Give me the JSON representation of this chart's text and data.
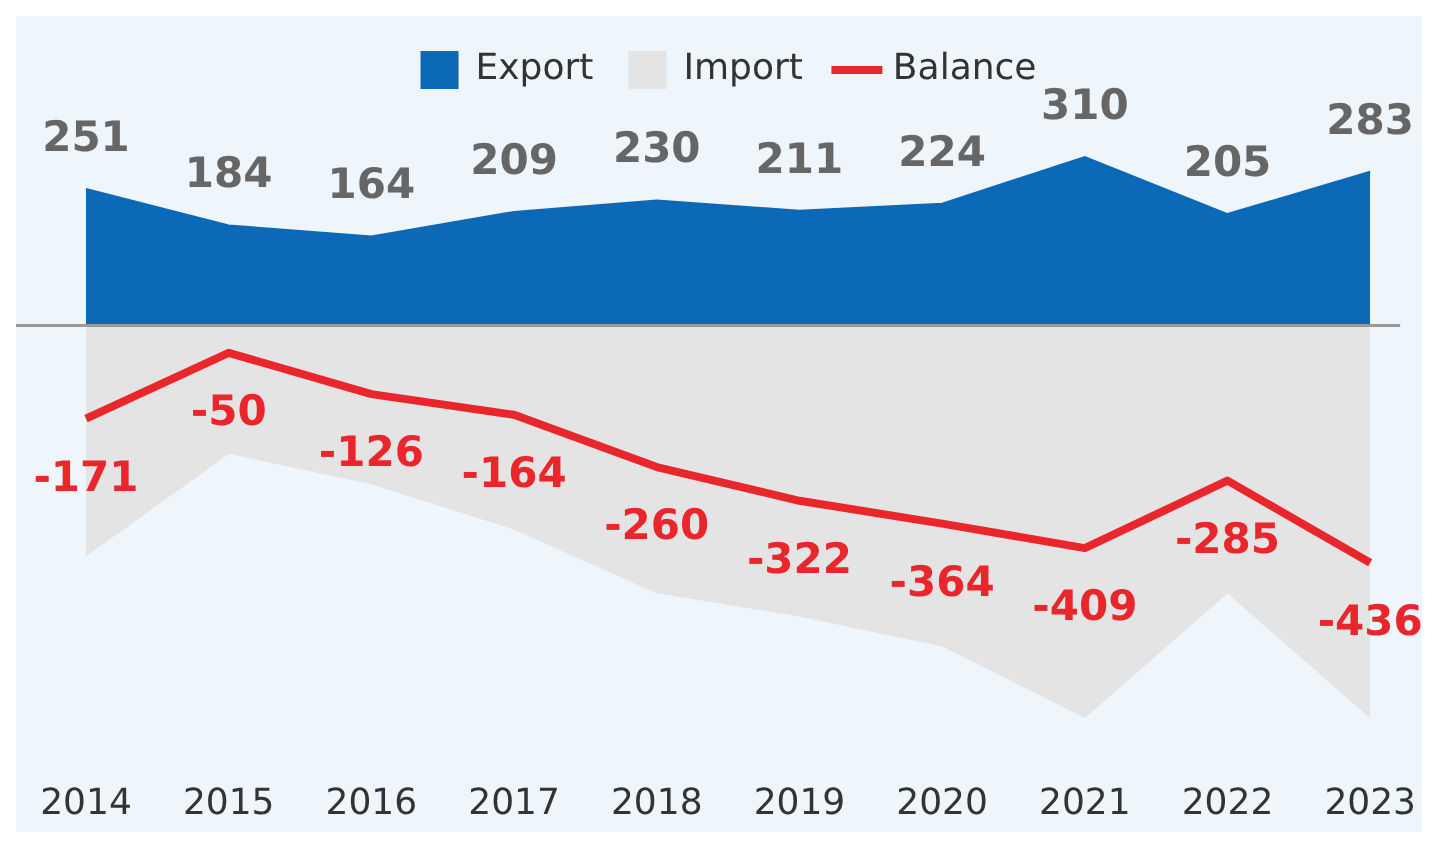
{
  "chart_data": {
    "type": "area",
    "legend": "top",
    "categories": [
      "2014",
      "2015",
      "2016",
      "2017",
      "2018",
      "2019",
      "2020",
      "2021",
      "2022",
      "2023"
    ],
    "series": [
      {
        "name": "Export",
        "type": "area",
        "color": "#0b69b7",
        "values": [
          251,
          184,
          164,
          209,
          230,
          211,
          224,
          310,
          205,
          283
        ],
        "value_labels": [
          "251",
          "184",
          "164",
          "209",
          "230",
          "211",
          "224",
          "310",
          "205",
          "283"
        ]
      },
      {
        "name": "Import",
        "type": "area",
        "color": "#e4e4e4",
        "values": [
          -422,
          -234,
          -290,
          -373,
          -490,
          -533,
          -588,
          -719,
          -490,
          -719
        ]
      },
      {
        "name": "Balance",
        "type": "line",
        "color": "#e8262b",
        "values": [
          -171,
          -50,
          -126,
          -164,
          -260,
          -322,
          -364,
          -409,
          -285,
          -436
        ],
        "value_labels": [
          "-171",
          "-50",
          "-126",
          "-164",
          "-260",
          "-322",
          "-364",
          "-409",
          "-285",
          "-436"
        ]
      }
    ]
  }
}
